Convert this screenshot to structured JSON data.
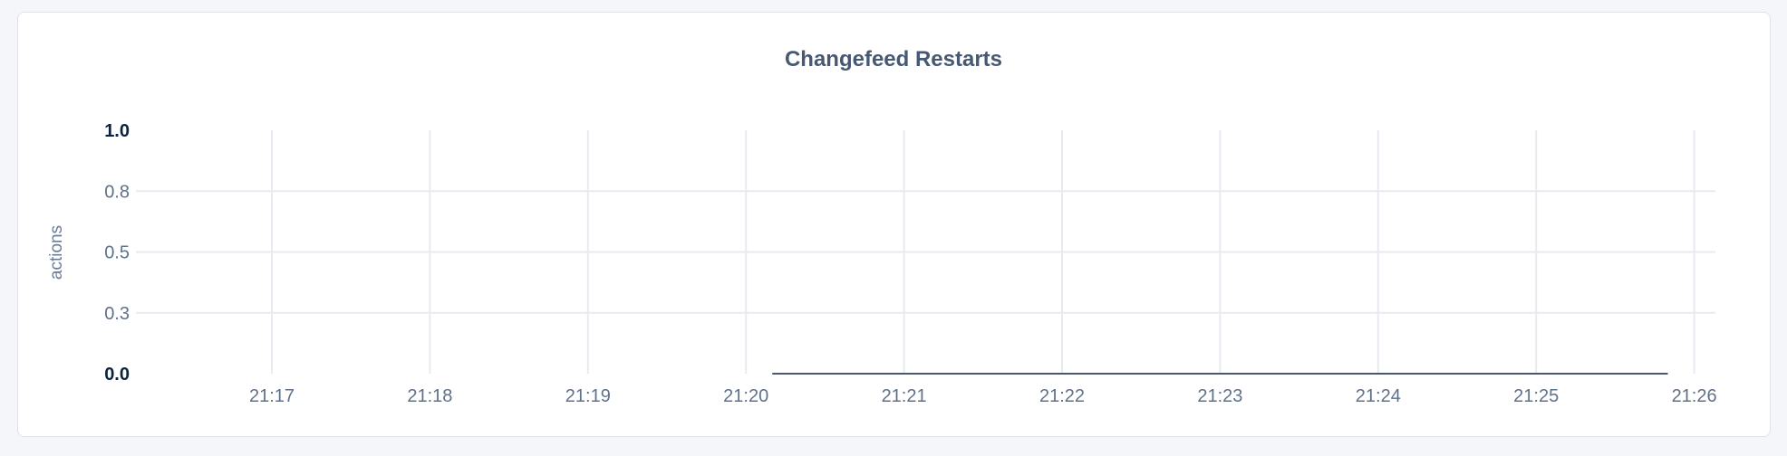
{
  "chart_data": {
    "type": "line",
    "title": "Changefeed Restarts",
    "xlabel": "",
    "ylabel": "actions",
    "ylim": [
      0,
      1
    ],
    "y_ticks": [
      {
        "value": 1.0,
        "label": "1.0",
        "bold": true
      },
      {
        "value": 0.75,
        "label": "0.8",
        "bold": false
      },
      {
        "value": 0.5,
        "label": "0.5",
        "bold": false
      },
      {
        "value": 0.25,
        "label": "0.3",
        "bold": false
      },
      {
        "value": 0.0,
        "label": "0.0",
        "bold": true
      }
    ],
    "x_ticks": [
      "21:17",
      "21:18",
      "21:19",
      "21:20",
      "21:21",
      "21:22",
      "21:23",
      "21:24",
      "21:25",
      "21:26"
    ],
    "grid": true,
    "series": [
      {
        "color": "#475872",
        "points": [
          {
            "x": "21:20:10",
            "y": 0
          },
          {
            "x": "21:25:50",
            "y": 0
          }
        ]
      }
    ]
  },
  "colors": {
    "title": "#475872",
    "grid": "#e7eaf0",
    "line": "#475872"
  }
}
